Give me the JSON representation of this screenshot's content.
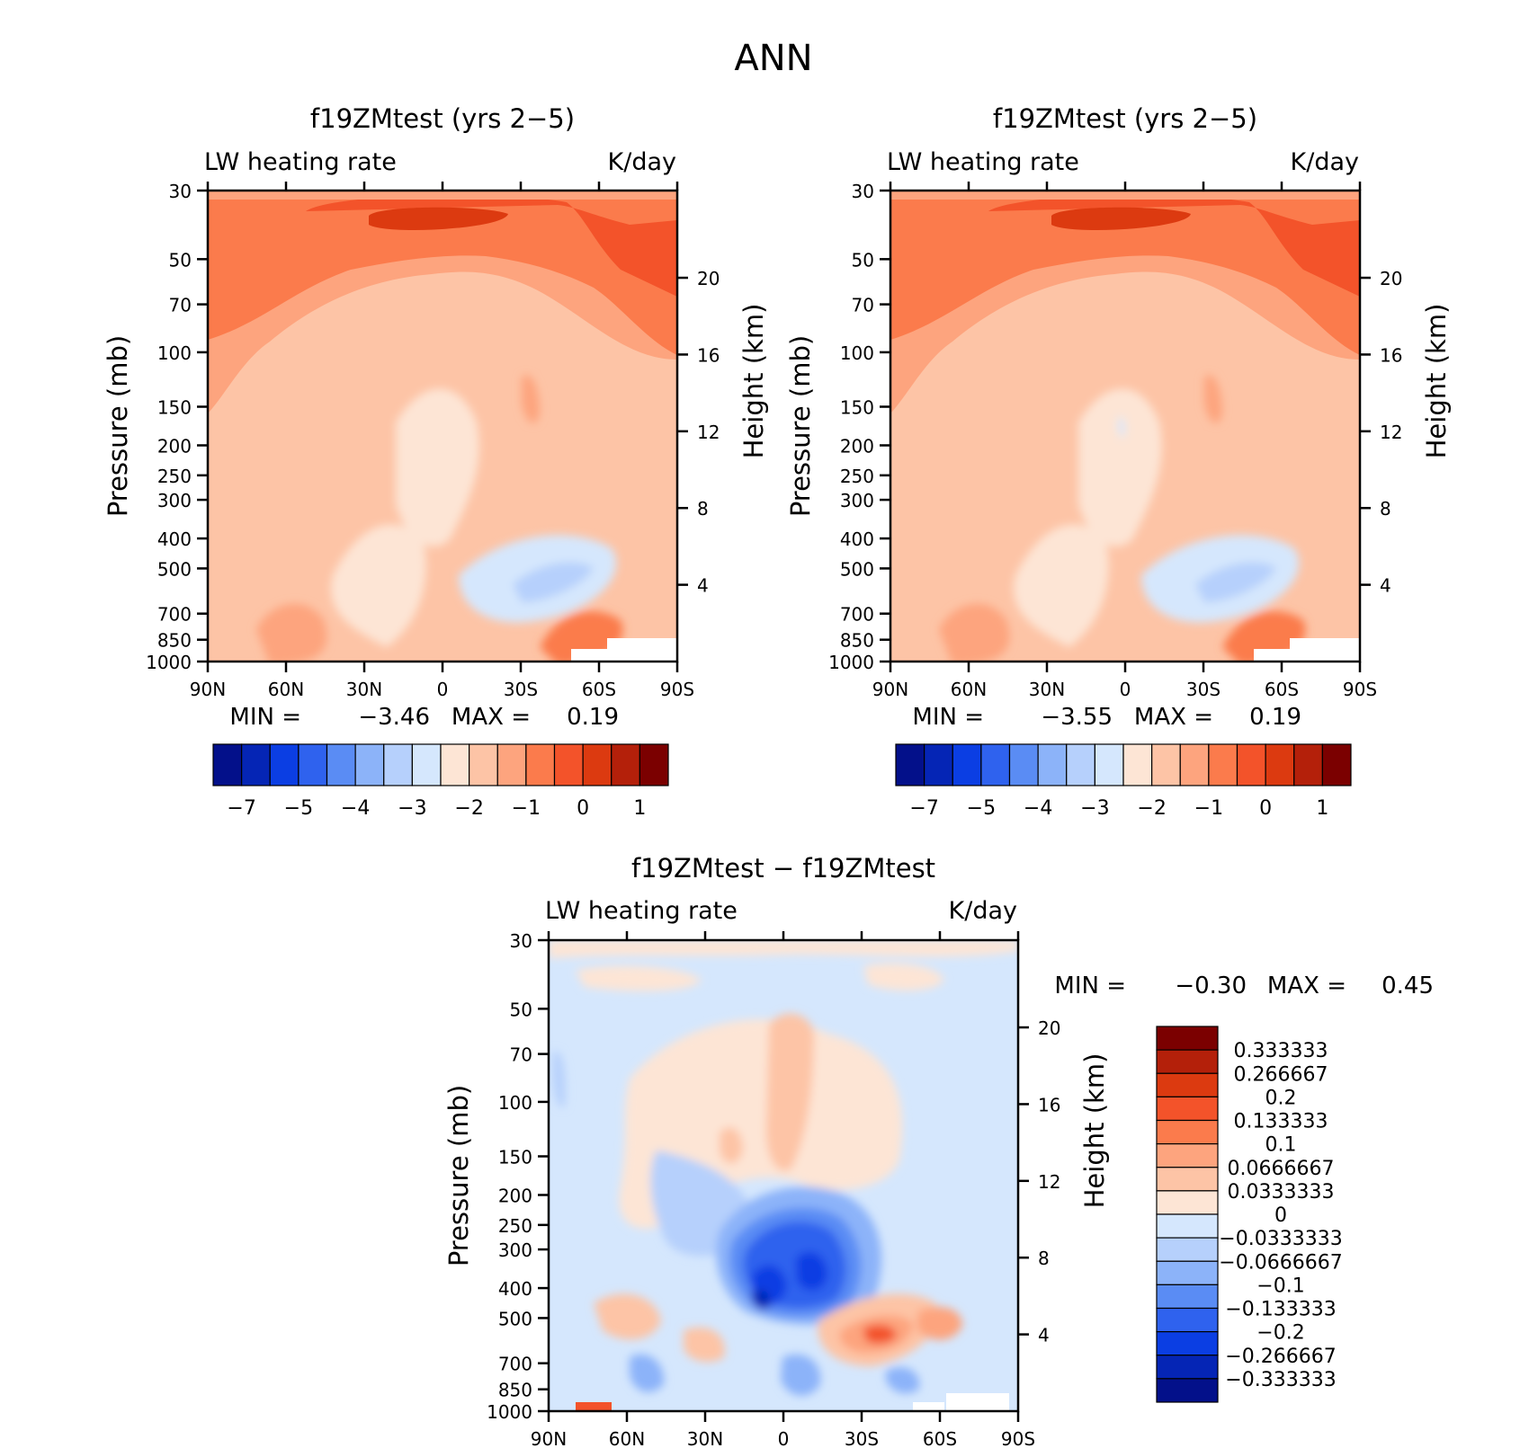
{
  "title": "ANN",
  "colors": {
    "warm_scale": [
      "#fde5d5",
      "#fdc4a6",
      "#fda47e",
      "#fb7b4c",
      "#f3532a",
      "#dc3a10",
      "#b4200a",
      "#7b0000"
    ],
    "cool_scale": [
      "#d5e7fd",
      "#b6d0fc",
      "#8cb3f9",
      "#5a8cf4",
      "#2f62ee",
      "#0b3ee3",
      "#0525b5",
      "#03108a"
    ],
    "missing": "#ffffff"
  },
  "chart_data": [
    {
      "type": "heatmap",
      "title": "f19ZMtest (yrs 2−5)",
      "left_label": "LW heating rate",
      "right_label": "K/day",
      "ylabel": "Pressure (mb)",
      "ylabel_right": "Height (km)",
      "x_ticks": [
        "90N",
        "60N",
        "30N",
        "0",
        "30S",
        "60S",
        "90S"
      ],
      "y_ticks": [
        "30",
        "50",
        "70",
        "100",
        "150",
        "200",
        "250",
        "300",
        "400",
        "500",
        "700",
        "850",
        "1000"
      ],
      "y_right_ticks": [
        "20",
        "16",
        "12",
        "8",
        "4"
      ],
      "min_label": "MIN =",
      "min_value": "−3.46",
      "max_label": "MAX =",
      "max_value": "0.19",
      "colorbar_ticks": [
        "−7",
        "−5",
        "−4",
        "−3",
        "−2",
        "−1",
        "0",
        "1"
      ]
    },
    {
      "type": "heatmap",
      "title": "f19ZMtest (yrs 2−5)",
      "left_label": "LW heating rate",
      "right_label": "K/day",
      "ylabel": "Pressure (mb)",
      "ylabel_right": "Height (km)",
      "x_ticks": [
        "90N",
        "60N",
        "30N",
        "0",
        "30S",
        "60S",
        "90S"
      ],
      "y_ticks": [
        "30",
        "50",
        "70",
        "100",
        "150",
        "200",
        "250",
        "300",
        "400",
        "500",
        "700",
        "850",
        "1000"
      ],
      "y_right_ticks": [
        "20",
        "16",
        "12",
        "8",
        "4"
      ],
      "min_label": "MIN =",
      "min_value": "−3.55",
      "max_label": "MAX =",
      "max_value": "0.19",
      "colorbar_ticks": [
        "−7",
        "−5",
        "−4",
        "−3",
        "−2",
        "−1",
        "0",
        "1"
      ]
    },
    {
      "type": "heatmap",
      "title": "f19ZMtest − f19ZMtest",
      "left_label": "LW heating rate",
      "right_label": "K/day",
      "ylabel": "Pressure (mb)",
      "ylabel_right": "Height (km)",
      "x_ticks": [
        "90N",
        "60N",
        "30N",
        "0",
        "30S",
        "60S",
        "90S"
      ],
      "y_ticks": [
        "30",
        "50",
        "70",
        "100",
        "150",
        "200",
        "250",
        "300",
        "400",
        "500",
        "700",
        "850",
        "1000"
      ],
      "y_right_ticks": [
        "20",
        "16",
        "12",
        "8",
        "4"
      ],
      "min_label": "MIN =",
      "min_value": "−0.30",
      "max_label": "MAX =",
      "max_value": "0.45",
      "colorbar_labels": [
        "0.333333",
        "0.266667",
        "0.2",
        "0.133333",
        "0.1",
        "0.0666667",
        "0.0333333",
        "0",
        "−0.0333333",
        "−0.0666667",
        "−0.1",
        "−0.133333",
        "−0.2",
        "−0.266667",
        "−0.333333"
      ]
    }
  ]
}
